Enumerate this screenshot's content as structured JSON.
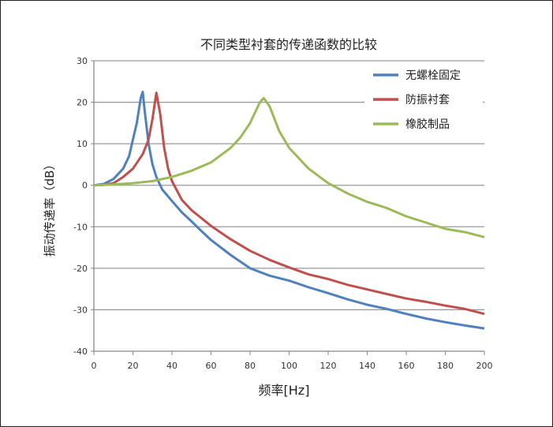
{
  "chart_data": {
    "type": "line",
    "title": "不同类型衬套的传递函数的比较",
    "xlabel": "频率[Hz]",
    "ylabel": "振动传递率（dB）",
    "xlim": [
      0,
      200
    ],
    "ylim": [
      -40,
      30
    ],
    "xticks": [
      0,
      20,
      40,
      60,
      80,
      100,
      120,
      140,
      160,
      180,
      200
    ],
    "yticks": [
      30,
      20,
      10,
      0,
      -10,
      -20,
      -30,
      -40
    ],
    "grid": "horizontal",
    "legend_position": "top-right",
    "series": [
      {
        "name": "无螺栓固定",
        "color": "#4f81bd",
        "x": [
          0,
          5,
          10,
          15,
          18,
          20,
          22,
          24,
          25,
          26,
          28,
          30,
          32,
          35,
          40,
          45,
          50,
          55,
          60,
          70,
          80,
          90,
          100,
          110,
          120,
          130,
          140,
          150,
          160,
          170,
          180,
          190,
          200
        ],
        "y": [
          0,
          0.3,
          1.5,
          4,
          7,
          11,
          15,
          21,
          22.5,
          18,
          10,
          5,
          2,
          -1,
          -3.8,
          -6.5,
          -8.7,
          -11,
          -13.2,
          -16.8,
          -20,
          -21.8,
          -23,
          -24.6,
          -26,
          -27.5,
          -28.8,
          -29.8,
          -31,
          -32.1,
          -33,
          -33.8,
          -34.5
        ]
      },
      {
        "name": "防振衬套",
        "color": "#c0504d",
        "x": [
          0,
          5,
          10,
          15,
          20,
          25,
          28,
          30,
          32,
          34,
          36,
          38,
          40,
          45,
          50,
          60,
          70,
          80,
          90,
          100,
          110,
          120,
          130,
          140,
          150,
          160,
          170,
          180,
          190,
          200
        ],
        "y": [
          0,
          0.1,
          0.5,
          2,
          4,
          7.5,
          11,
          16,
          22.3,
          17,
          9,
          4,
          1,
          -3.5,
          -6,
          -9.8,
          -13,
          -15.8,
          -18,
          -19.8,
          -21.5,
          -22.6,
          -24,
          -25.1,
          -26.2,
          -27.3,
          -28.1,
          -29,
          -29.8,
          -31
        ]
      },
      {
        "name": "橡胶制品",
        "color": "#9bbb59",
        "x": [
          0,
          10,
          20,
          30,
          40,
          50,
          60,
          70,
          75,
          80,
          85,
          87,
          90,
          95,
          100,
          110,
          120,
          130,
          140,
          150,
          160,
          170,
          180,
          190,
          200
        ],
        "y": [
          0,
          0.2,
          0.5,
          1,
          2,
          3.5,
          5.5,
          9,
          11.5,
          15,
          20,
          21,
          19,
          13,
          9,
          4,
          0.5,
          -2,
          -4,
          -5.5,
          -7.5,
          -9,
          -10.5,
          -11.3,
          -12.5
        ]
      }
    ]
  }
}
